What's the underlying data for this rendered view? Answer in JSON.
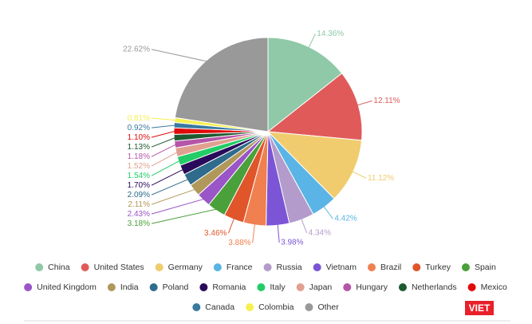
{
  "chart_data": {
    "type": "pie",
    "categories": [
      "China",
      "United States",
      "Germany",
      "France",
      "Russia",
      "Vietnam",
      "Brazil",
      "Turkey",
      "Spain",
      "United Kingdom",
      "India",
      "Poland",
      "Romania",
      "Italy",
      "Japan",
      "Hungary",
      "Netherlands",
      "Mexico",
      "Canada",
      "Colombia",
      "Other"
    ],
    "values": [
      14.36,
      12.11,
      11.12,
      4.42,
      4.34,
      3.98,
      3.88,
      3.46,
      3.18,
      2.43,
      2.11,
      2.09,
      1.7,
      1.54,
      1.52,
      1.18,
      1.13,
      1.1,
      0.92,
      0.81,
      22.62
    ],
    "value_labels": [
      "14.36%",
      "12.11%",
      "11.12%",
      "4.42%",
      "4.34%",
      "3.98%",
      "3.88%",
      "3.46%",
      "3.18%",
      "2.43%",
      "2.11%",
      "2.09%",
      "1.70%",
      "1.54%",
      "1.52%",
      "1.18%",
      "1.13%",
      "1.10%",
      "0.92%",
      "0.81%",
      "22.62%"
    ],
    "colors": [
      "#8fc9a8",
      "#e05a5a",
      "#f0cc6e",
      "#5ab4e5",
      "#b39ccc",
      "#7b55d6",
      "#f08050",
      "#e0552a",
      "#4aa03a",
      "#9a55c8",
      "#b0985a",
      "#2e6b8c",
      "#2a0a5a",
      "#22cc66",
      "#e0a090",
      "#b555a8",
      "#1e5a30",
      "#e00a0a",
      "#3a7aa0",
      "#f5f050",
      "#999999"
    ],
    "legend": "bottom"
  },
  "logo": "VIET"
}
